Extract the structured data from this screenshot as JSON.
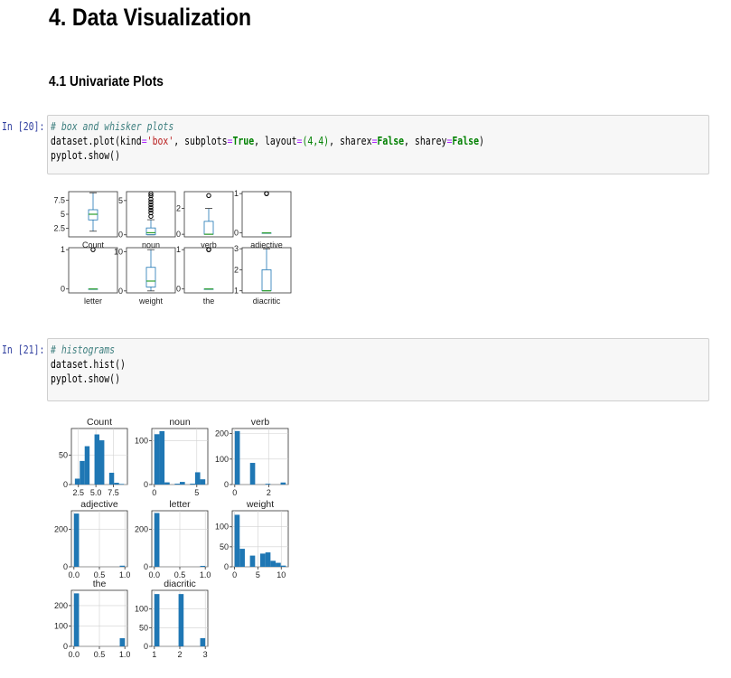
{
  "page": {
    "title": "4. Data Visualization",
    "subtitle": "4.1 Univariate Plots"
  },
  "cells": [
    {
      "prompt": "In [20]:",
      "comment": "# box and whisker plots",
      "line2_obj": "dataset",
      "line2_method": ".plot(kind",
      "line2_kind": "'box'",
      "line2_subplots_kw": ", subplots",
      "line2_true": "True",
      "line2_layout": ", layout",
      "line2_layout_val": "(4,4)",
      "line2_sharex_kw": ", sharex",
      "line2_false1": "False",
      "line2_sharey_kw": ", sharey",
      "line2_false2": "False",
      "line2_end": ")",
      "line3": "pyplot.show()"
    },
    {
      "prompt": "In [21]:",
      "comment": "# histograms",
      "line2": "dataset.hist()",
      "line3": "pyplot.show()"
    }
  ],
  "chart_data": [
    {
      "type": "box",
      "title": "",
      "colors": {
        "box": "#1f77b4",
        "median": "#2ca02c",
        "flier": "#000000"
      },
      "panels": [
        {
          "label": "Count",
          "yticks": [
            2.5,
            5.0,
            7.5
          ],
          "ylim": [
            1,
            9
          ],
          "whislo": 2,
          "q1": 4,
          "median": 5,
          "q3": 5.8,
          "whishi": 8.8,
          "fliers": []
        },
        {
          "label": "noun",
          "yticks": [
            0,
            5
          ],
          "ylim": [
            -0.3,
            6.3
          ],
          "whislo": 0,
          "q1": 0,
          "median": 0.3,
          "q3": 1.0,
          "whishi": 2.2,
          "fliers": [
            2.7,
            3.2,
            3.6,
            4.0,
            4.4,
            4.8,
            5.2,
            5.7,
            6.0
          ]
        },
        {
          "label": "verb",
          "yticks": [
            0,
            2
          ],
          "ylim": [
            -0.2,
            3.3
          ],
          "whislo": 0,
          "q1": 0,
          "median": 0,
          "q3": 1.0,
          "whishi": 2.0,
          "fliers": [
            3.0
          ]
        },
        {
          "label": "adjective",
          "yticks": [
            0,
            1
          ],
          "ylim": [
            -0.1,
            1.05
          ],
          "whislo": 0,
          "q1": 0,
          "median": 0,
          "q3": 0,
          "whishi": 0,
          "fliers": [
            1.0,
            1.0
          ]
        },
        {
          "label": "letter",
          "yticks": [
            0,
            1
          ],
          "ylim": [
            -0.1,
            1.05
          ],
          "whislo": 0,
          "q1": 0,
          "median": 0,
          "q3": 0,
          "whishi": 0,
          "fliers": [
            1.0
          ]
        },
        {
          "label": "weight",
          "yticks": [
            0,
            10
          ],
          "ylim": [
            -0.5,
            11
          ],
          "whislo": 0,
          "q1": 1,
          "median": 2.5,
          "q3": 6,
          "whishi": 10.5,
          "fliers": []
        },
        {
          "label": "the",
          "yticks": [
            0,
            1
          ],
          "ylim": [
            -0.1,
            1.05
          ],
          "whislo": 0,
          "q1": 0,
          "median": 0,
          "q3": 0,
          "whishi": 0,
          "fliers": [
            1.0,
            1.0
          ]
        },
        {
          "label": "diacritic",
          "yticks": [
            1,
            2,
            3
          ],
          "ylim": [
            0.9,
            3.05
          ],
          "whislo": 1,
          "q1": 1,
          "median": 1,
          "q3": 2,
          "whishi": 3,
          "fliers": []
        }
      ]
    },
    {
      "type": "bar",
      "title": "",
      "color": "#1f77b4",
      "grid": true,
      "panels": [
        {
          "title": "Count",
          "xlim": [
            1.5,
            9.5
          ],
          "ylim": [
            0,
            95
          ],
          "yticks": [
            0,
            50
          ],
          "xticks": [
            2.5,
            5.0,
            7.5
          ],
          "xtick_labels": [
            "2.5",
            "5.0",
            "7.5"
          ],
          "bins": [
            [
              2,
              2.7,
              10
            ],
            [
              2.7,
              3.4,
              40
            ],
            [
              3.4,
              4.1,
              65
            ],
            [
              4.8,
              5.5,
              85
            ],
            [
              5.5,
              6.2,
              75
            ],
            [
              6.9,
              7.6,
              20
            ],
            [
              7.6,
              8.3,
              3
            ],
            [
              8.3,
              9.0,
              1
            ]
          ]
        },
        {
          "title": "noun",
          "xlim": [
            -0.3,
            6.3
          ],
          "ylim": [
            0,
            128
          ],
          "yticks": [
            0,
            100
          ],
          "xticks": [
            0,
            5
          ],
          "xtick_labels": [
            "0",
            "5"
          ],
          "bins": [
            [
              0,
              0.6,
              115
            ],
            [
              0.6,
              1.2,
              122
            ],
            [
              1.2,
              1.8,
              5
            ],
            [
              2.4,
              3.0,
              2
            ],
            [
              3.0,
              3.6,
              6
            ],
            [
              4.2,
              4.8,
              2
            ],
            [
              4.8,
              5.4,
              28
            ],
            [
              5.4,
              6.0,
              12
            ]
          ]
        },
        {
          "title": "verb",
          "xlim": [
            -0.15,
            3.15
          ],
          "ylim": [
            0,
            220
          ],
          "yticks": [
            0,
            100,
            200
          ],
          "xticks": [
            0,
            2
          ],
          "xtick_labels": [
            "0",
            "2"
          ],
          "bins": [
            [
              0,
              0.3,
              210
            ],
            [
              0.9,
              1.2,
              85
            ],
            [
              1.8,
              2.1,
              3
            ],
            [
              2.7,
              3.0,
              8
            ]
          ]
        },
        {
          "title": "adjective",
          "xlim": [
            -0.05,
            1.05
          ],
          "ylim": [
            0,
            300
          ],
          "yticks": [
            0,
            200
          ],
          "xticks": [
            0.0,
            0.5,
            1.0
          ],
          "xtick_labels": [
            "0.0",
            "0.5",
            "1.0"
          ],
          "bins": [
            [
              0,
              0.1,
              285
            ],
            [
              0.9,
              1.0,
              6
            ]
          ]
        },
        {
          "title": "letter",
          "xlim": [
            -0.05,
            1.05
          ],
          "ylim": [
            0,
            300
          ],
          "yticks": [
            0,
            200
          ],
          "xticks": [
            0.0,
            0.5,
            1.0
          ],
          "xtick_labels": [
            "0.0",
            "0.5",
            "1.0"
          ],
          "bins": [
            [
              0,
              0.1,
              288
            ],
            [
              0.9,
              1.0,
              5
            ]
          ]
        },
        {
          "title": "weight",
          "xlim": [
            -0.5,
            11.5
          ],
          "ylim": [
            0,
            140
          ],
          "yticks": [
            0,
            50,
            100
          ],
          "xticks": [
            0,
            5,
            10
          ],
          "xtick_labels": [
            "0",
            "5",
            "10"
          ],
          "bins": [
            [
              0,
              1.1,
              130
            ],
            [
              1.1,
              2.2,
              45
            ],
            [
              3.3,
              4.4,
              28
            ],
            [
              5.5,
              6.6,
              33
            ],
            [
              6.6,
              7.7,
              36
            ],
            [
              7.7,
              8.8,
              15
            ],
            [
              8.8,
              9.9,
              10
            ],
            [
              9.9,
              11,
              3
            ]
          ]
        },
        {
          "title": "the",
          "xlim": [
            -0.05,
            1.05
          ],
          "ylim": [
            0,
            275
          ],
          "yticks": [
            0,
            100,
            200
          ],
          "xticks": [
            0.0,
            0.5,
            1.0
          ],
          "xtick_labels": [
            "0.0",
            "0.5",
            "1.0"
          ],
          "bins": [
            [
              0,
              0.1,
              260
            ],
            [
              0.9,
              1.0,
              40
            ]
          ]
        },
        {
          "title": "diacritic",
          "xlim": [
            0.9,
            3.1
          ],
          "ylim": [
            0,
            150
          ],
          "yticks": [
            0,
            50,
            100
          ],
          "xticks": [
            1,
            2,
            3
          ],
          "xtick_labels": [
            "1",
            "2",
            "3"
          ],
          "bins": [
            [
              1.0,
              1.2,
              140
            ],
            [
              1.95,
              2.15,
              140
            ],
            [
              2.8,
              3.0,
              22
            ]
          ]
        }
      ]
    }
  ]
}
